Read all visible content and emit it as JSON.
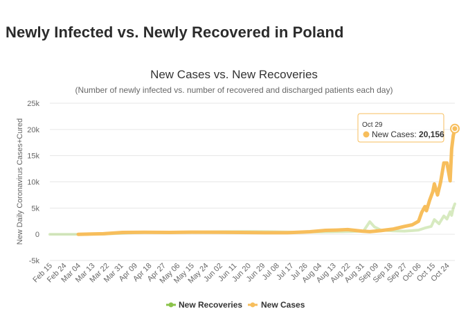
{
  "page": {
    "title": "Newly Infected vs. Newly Recovered in Poland"
  },
  "chart_data": {
    "type": "line",
    "title": "New Cases vs. New Recoveries",
    "subtitle": "(Number of newly infected vs. number of recovered and discharged patients each day)",
    "ylabel": "New Daily Coronavirus Cases+Cured",
    "xlabel": "",
    "ylim": [
      -5000,
      25000
    ],
    "yticks": [
      -5000,
      0,
      5000,
      10000,
      15000,
      20000,
      25000
    ],
    "ytick_labels": [
      "-5k",
      "0",
      "5k",
      "10k",
      "15k",
      "20k",
      "25k"
    ],
    "xticks": [
      "Feb 15",
      "Feb 24",
      "Mar 04",
      "Mar 13",
      "Mar 22",
      "Mar 31",
      "Apr 09",
      "Apr 18",
      "Apr 27",
      "May 06",
      "May 15",
      "May 24",
      "Jun 02",
      "Jun 11",
      "Jun 20",
      "Jun 29",
      "Jul 08",
      "Jul 17",
      "Jul 26",
      "Aug 04",
      "Aug 13",
      "Aug 22",
      "Aug 31",
      "Sep 09",
      "Sep 18",
      "Sep 27",
      "Oct 06",
      "Oct 15",
      "Oct 24"
    ],
    "x_start": "Feb 15",
    "x_end": "Oct 29",
    "grid": true,
    "legend_position": "bottom-center",
    "series": [
      {
        "name": "New Recoveries",
        "color": "#8bc34a",
        "points": [
          [
            "Feb 15",
            0
          ],
          [
            "Mar 04",
            0
          ],
          [
            "Mar 20",
            30
          ],
          [
            "Apr 05",
            250
          ],
          [
            "Apr 20",
            400
          ],
          [
            "May 05",
            420
          ],
          [
            "May 20",
            440
          ],
          [
            "Jun 05",
            500
          ],
          [
            "Jun 20",
            520
          ],
          [
            "Jul 05",
            480
          ],
          [
            "Jul 20",
            400
          ],
          [
            "Aug 05",
            450
          ],
          [
            "Aug 20",
            500
          ],
          [
            "Sep 01",
            600
          ],
          [
            "Sep 05",
            2400
          ],
          [
            "Sep 08",
            1400
          ],
          [
            "Sep 12",
            800
          ],
          [
            "Sep 20",
            650
          ],
          [
            "Sep 27",
            600
          ],
          [
            "Oct 02",
            700
          ],
          [
            "Oct 06",
            800
          ],
          [
            "Oct 10",
            1200
          ],
          [
            "Oct 14",
            1500
          ],
          [
            "Oct 16",
            2800
          ],
          [
            "Oct 19",
            2000
          ],
          [
            "Oct 22",
            3500
          ],
          [
            "Oct 24",
            2900
          ],
          [
            "Oct 26",
            4300
          ],
          [
            "Oct 27",
            3600
          ],
          [
            "Oct 28",
            5000
          ],
          [
            "Oct 29",
            5800
          ]
        ]
      },
      {
        "name": "New Cases",
        "color": "#f7be5c",
        "points": [
          [
            "Mar 04",
            0
          ],
          [
            "Mar 20",
            100
          ],
          [
            "Apr 01",
            350
          ],
          [
            "Apr 15",
            380
          ],
          [
            "May 01",
            350
          ],
          [
            "May 15",
            400
          ],
          [
            "Jun 01",
            380
          ],
          [
            "Jun 15",
            350
          ],
          [
            "Jul 01",
            300
          ],
          [
            "Jul 15",
            300
          ],
          [
            "Jul 29",
            480
          ],
          [
            "Aug 08",
            750
          ],
          [
            "Aug 15",
            800
          ],
          [
            "Aug 22",
            900
          ],
          [
            "Aug 31",
            600
          ],
          [
            "Sep 05",
            500
          ],
          [
            "Sep 12",
            700
          ],
          [
            "Sep 20",
            1000
          ],
          [
            "Sep 27",
            1500
          ],
          [
            "Oct 02",
            1800
          ],
          [
            "Oct 06",
            2500
          ],
          [
            "Oct 08",
            4200
          ],
          [
            "Oct 10",
            5300
          ],
          [
            "Oct 11",
            4500
          ],
          [
            "Oct 13",
            6500
          ],
          [
            "Oct 15",
            8100
          ],
          [
            "Oct 16",
            9600
          ],
          [
            "Oct 18",
            7500
          ],
          [
            "Oct 20",
            10000
          ],
          [
            "Oct 22",
            13600
          ],
          [
            "Oct 24",
            13600
          ],
          [
            "Oct 26",
            10200
          ],
          [
            "Oct 27",
            16300
          ],
          [
            "Oct 28",
            18800
          ],
          [
            "Oct 29",
            20156
          ]
        ]
      }
    ],
    "tooltip": {
      "date": "Oct 29",
      "label": "New Cases: ",
      "value": "20,156"
    }
  }
}
